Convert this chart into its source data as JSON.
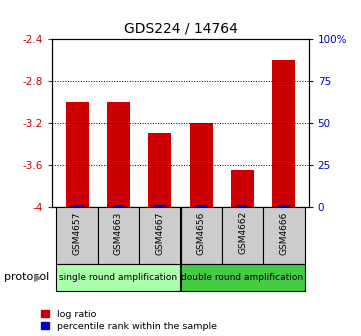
{
  "title": "GDS224 / 14764",
  "samples": [
    "GSM4657",
    "GSM4663",
    "GSM4667",
    "GSM4656",
    "GSM4662",
    "GSM4666"
  ],
  "log_ratios": [
    -3.0,
    -3.0,
    -3.3,
    -3.2,
    -3.65,
    -2.6
  ],
  "percentile_ranks": [
    1,
    1,
    1,
    1,
    1,
    1
  ],
  "bar_color_red": "#cc0000",
  "bar_color_blue": "#0000cc",
  "ylim_left": [
    -4,
    -2.4
  ],
  "yticks_left": [
    -4,
    -3.6,
    -3.2,
    -2.8,
    -2.4
  ],
  "ytick_labels_left": [
    "-4",
    "-3.6",
    "-3.2",
    "-2.8",
    "-2.4"
  ],
  "yticks_right_pct": [
    0,
    25,
    50,
    75,
    100
  ],
  "ytick_labels_right": [
    "0",
    "25",
    "50",
    "75",
    "100%"
  ],
  "protocol_groups": [
    {
      "label": "single round amplification",
      "color": "#aaffaa",
      "start": 0,
      "end": 3
    },
    {
      "label": "double round amplification",
      "color": "#44cc44",
      "start": 3,
      "end": 6
    }
  ],
  "protocol_label": "protocol",
  "tick_color_left": "#cc0000",
  "tick_color_right": "#0000cc",
  "grid_color": "black",
  "bar_width": 0.55,
  "sample_box_color": "#cccccc",
  "title_fontsize": 10
}
